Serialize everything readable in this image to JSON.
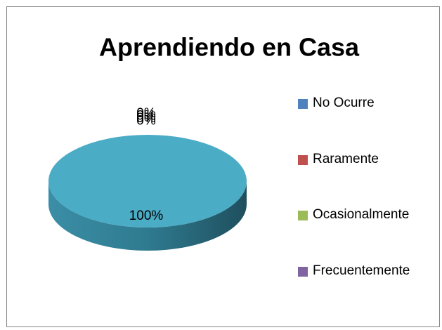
{
  "chart_data": {
    "type": "pie3d",
    "title": "Aprendiendo en Casa",
    "categories": [
      "No Ocurre",
      "Raramente",
      "Ocasionalmente",
      "Frecuentemente",
      null
    ],
    "values": [
      0,
      0,
      0,
      0,
      100
    ],
    "value_labels": [
      "0%",
      "0%",
      "0%",
      "0%",
      "100%"
    ],
    "colors": [
      "#4f81bd",
      "#c0504d",
      "#9bbb59",
      "#8064a2",
      "#4bacc6"
    ],
    "legend": "right"
  }
}
